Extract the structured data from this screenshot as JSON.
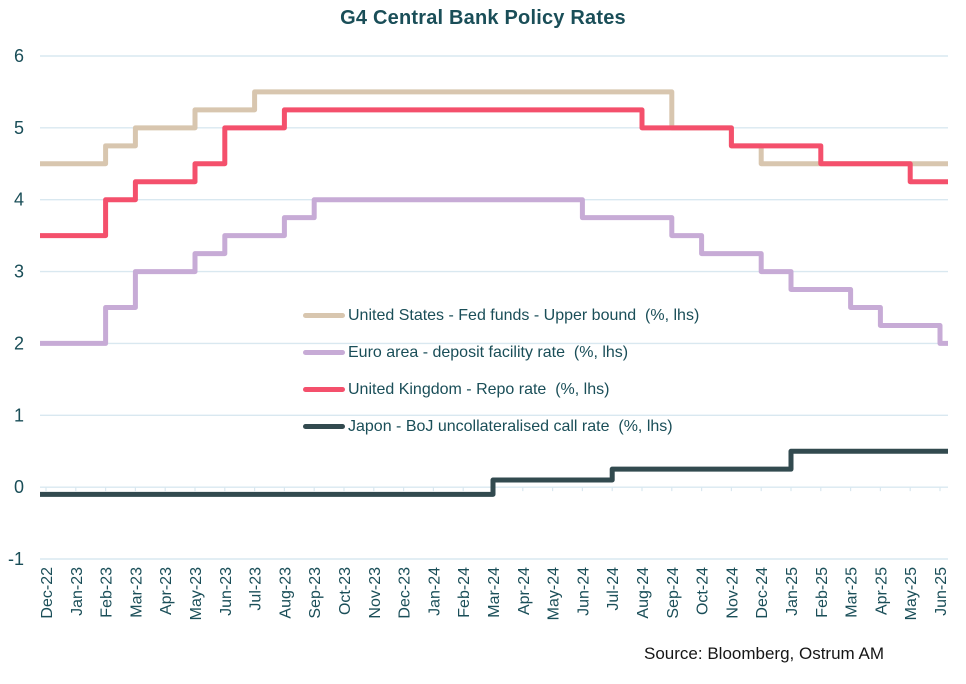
{
  "chart_data": {
    "type": "line",
    "subtype": "step",
    "title": "G4 Central Bank Policy Rates",
    "xlabel": "",
    "ylabel": "",
    "ylim": [
      -1,
      6
    ],
    "y_ticks": [
      6,
      5,
      4,
      3,
      2,
      1,
      0,
      -1
    ],
    "grid": "horizontal-light",
    "legend_position": "inside-middle-left",
    "x_labels": [
      "Dec-22",
      "Jan-23",
      "Feb-23",
      "Mar-23",
      "Apr-23",
      "May-23",
      "Jun-23",
      "Jul-23",
      "Aug-23",
      "Sep-23",
      "Oct-23",
      "Nov-23",
      "Dec-23",
      "Jan-24",
      "Feb-24",
      "Mar-24",
      "Apr-24",
      "May-24",
      "Jun-24",
      "Jul-24",
      "Aug-24",
      "Sep-24",
      "Oct-24",
      "Nov-24",
      "Dec-24",
      "Jan-25",
      "Feb-25",
      "Mar-25",
      "Apr-25",
      "May-25",
      "Jun-25"
    ],
    "series": [
      {
        "name": "United States - Fed funds - Upper bound  (%, lhs)",
        "color": "#d8c6af",
        "values": [
          4.5,
          4.5,
          4.75,
          5.0,
          5.0,
          5.25,
          5.25,
          5.5,
          5.5,
          5.5,
          5.5,
          5.5,
          5.5,
          5.5,
          5.5,
          5.5,
          5.5,
          5.5,
          5.5,
          5.5,
          5.5,
          5.0,
          5.0,
          4.75,
          4.5,
          4.5,
          4.5,
          4.5,
          4.5,
          4.5,
          4.5
        ]
      },
      {
        "name": "Euro area - deposit facility rate  (%, lhs)",
        "color": "#c7abd6",
        "values": [
          2.0,
          2.0,
          2.5,
          3.0,
          3.0,
          3.25,
          3.5,
          3.5,
          3.75,
          4.0,
          4.0,
          4.0,
          4.0,
          4.0,
          4.0,
          4.0,
          4.0,
          4.0,
          3.75,
          3.75,
          3.75,
          3.5,
          3.25,
          3.25,
          3.0,
          2.75,
          2.75,
          2.5,
          2.25,
          2.25,
          2.0
        ]
      },
      {
        "name": "United Kingdom - Repo rate  (%, lhs)",
        "color": "#f4506c",
        "values": [
          3.5,
          3.5,
          4.0,
          4.25,
          4.25,
          4.5,
          5.0,
          5.0,
          5.25,
          5.25,
          5.25,
          5.25,
          5.25,
          5.25,
          5.25,
          5.25,
          5.25,
          5.25,
          5.25,
          5.25,
          5.0,
          5.0,
          5.0,
          4.75,
          4.75,
          4.75,
          4.5,
          4.5,
          4.5,
          4.25,
          4.25
        ]
      },
      {
        "name": "Japon - BoJ uncollateralised call rate  (%, lhs)",
        "color": "#324a4f",
        "values": [
          -0.1,
          -0.1,
          -0.1,
          -0.1,
          -0.1,
          -0.1,
          -0.1,
          -0.1,
          -0.1,
          -0.1,
          -0.1,
          -0.1,
          -0.1,
          -0.1,
          -0.1,
          0.1,
          0.1,
          0.1,
          0.1,
          0.25,
          0.25,
          0.25,
          0.25,
          0.25,
          0.25,
          0.5,
          0.5,
          0.5,
          0.5,
          0.5,
          0.5
        ]
      }
    ],
    "source_note": "Source: Bloomberg, Ostrum AM"
  },
  "styles": {
    "title_color": "#1a4e58",
    "axis_text_color": "#1a4e58",
    "legend_text_color": "#1a4e58",
    "grid_color": "#d9e8f0",
    "source_text_color": "#161616",
    "background": "#ffffff"
  }
}
